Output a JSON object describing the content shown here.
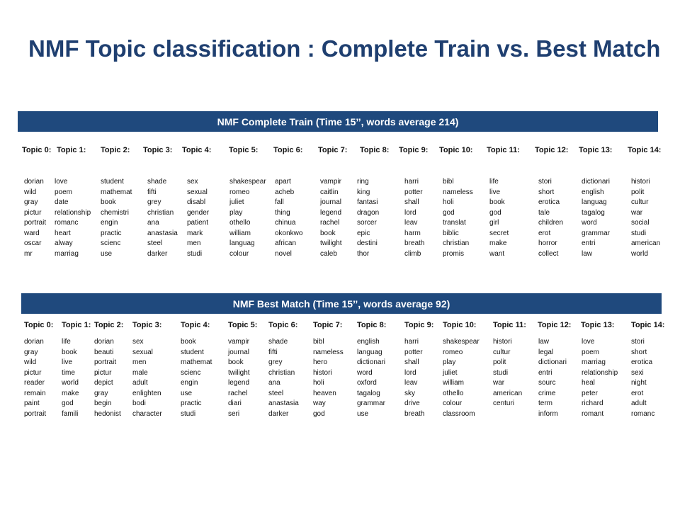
{
  "title": "NMF Topic classification : Complete Train vs. Best Match",
  "sections": [
    {
      "banner": "NMF Complete Train (Time 15’’, words average 214)",
      "topics": [
        {
          "label": "Topic 0:",
          "words": [
            "dorian",
            "wild",
            "gray",
            "pictur",
            "portrait",
            "ward",
            "oscar",
            "mr"
          ]
        },
        {
          "label": "Topic 1:",
          "words": [
            "love",
            "poem",
            "date",
            "relationship",
            "romanc",
            "heart",
            "alway",
            "marriag"
          ]
        },
        {
          "label": "Topic 2:",
          "words": [
            "student",
            "mathemat",
            "book",
            "chemistri",
            "engin",
            "practic",
            "scienc",
            "use"
          ]
        },
        {
          "label": "Topic 3:",
          "words": [
            "shade",
            "fifti",
            "grey",
            "christian",
            "ana",
            "anastasia",
            "steel",
            "darker"
          ]
        },
        {
          "label": "Topic 4:",
          "words": [
            "sex",
            "sexual",
            "disabl",
            "gender",
            "patient",
            "mark",
            "men",
            "studi"
          ]
        },
        {
          "label": "Topic 5:",
          "words": [
            "shakespear",
            "romeo",
            "juliet",
            "play",
            "othello",
            "william",
            "languag",
            "colour"
          ]
        },
        {
          "label": "Topic 6:",
          "words": [
            "apart",
            "acheb",
            "fall",
            "thing",
            "chinua",
            "okonkwo",
            "african",
            "novel"
          ]
        },
        {
          "label": "Topic 7:",
          "words": [
            "vampir",
            "caitlin",
            "journal",
            "legend",
            "rachel",
            "book",
            "twilight",
            "caleb"
          ]
        },
        {
          "label": "Topic 8:",
          "words": [
            "ring",
            "king",
            "fantasi",
            "dragon",
            "sorcer",
            "epic",
            "destini",
            "thor"
          ]
        },
        {
          "label": "Topic 9:",
          "words": [
            "harri",
            "potter",
            "shall",
            "lord",
            "leav",
            "harm",
            "breath",
            "climb"
          ]
        },
        {
          "label": "Topic 10:",
          "words": [
            "bibl",
            "nameless",
            "holi",
            "god",
            "translat",
            "biblic",
            "christian",
            "promis"
          ]
        },
        {
          "label": "Topic 11:",
          "words": [
            "life",
            "live",
            "book",
            "god",
            "girl",
            "secret",
            "make",
            "want"
          ]
        },
        {
          "label": "Topic 12:",
          "words": [
            "stori",
            "short",
            "erotica",
            "tale",
            "children",
            "erot",
            "horror",
            "collect"
          ]
        },
        {
          "label": "Topic 13:",
          "words": [
            "dictionari",
            "english",
            "languag",
            "tagalog",
            "word",
            "grammar",
            "entri",
            "law"
          ]
        },
        {
          "label": "Topic 14:",
          "words": [
            "histori",
            "polit",
            "cultur",
            "war",
            "social",
            "studi",
            "american",
            "world"
          ]
        }
      ]
    },
    {
      "banner": "NMF Best Match (Time 15’’, words average 92)",
      "topics": [
        {
          "label": "Topic 0:",
          "words": [
            "dorian",
            "gray",
            "wild",
            "pictur",
            "reader",
            "remain",
            "paint",
            "portrait"
          ]
        },
        {
          "label": "Topic 1:",
          "words": [
            "life",
            "book",
            "live",
            "time",
            "world",
            "make",
            "god",
            "famili"
          ]
        },
        {
          "label": "Topic 2:",
          "words": [
            "dorian",
            "beauti",
            "portrait",
            "pictur",
            "depict",
            "gray",
            "begin",
            "hedonist"
          ]
        },
        {
          "label": "Topic 3:",
          "words": [
            "sex",
            "sexual",
            "men",
            "male",
            "adult",
            "enlighten",
            "bodi",
            "character"
          ]
        },
        {
          "label": "Topic 4:",
          "words": [
            "book",
            "student",
            "mathemat",
            "scienc",
            "engin",
            "use",
            "practic",
            "studi"
          ]
        },
        {
          "label": "Topic 5:",
          "words": [
            "vampir",
            "journal",
            "book",
            "twilight",
            "legend",
            "rachel",
            "diari",
            "seri"
          ]
        },
        {
          "label": "Topic 6:",
          "words": [
            "shade",
            "fifti",
            "grey",
            "christian",
            "ana",
            "steel",
            "anastasia",
            "darker"
          ]
        },
        {
          "label": "Topic 7:",
          "words": [
            "bibl",
            "nameless",
            "hero",
            "histori",
            "holi",
            "heaven",
            "way",
            "god"
          ]
        },
        {
          "label": "Topic 8:",
          "words": [
            "english",
            "languag",
            "dictionari",
            "word",
            "oxford",
            "tagalog",
            "grammar",
            "use"
          ]
        },
        {
          "label": "Topic 9:",
          "words": [
            "harri",
            "potter",
            "shall",
            "lord",
            "leav",
            "sky",
            "drive",
            "breath"
          ]
        },
        {
          "label": "Topic 10:",
          "words": [
            "shakespear",
            "romeo",
            "play",
            "juliet",
            "william",
            "othello",
            "colour",
            "classroom"
          ]
        },
        {
          "label": "Topic 11:",
          "words": [
            "histori",
            "cultur",
            "polit",
            "studi",
            "war",
            "american",
            "centuri"
          ]
        },
        {
          "label": "Topic 12:",
          "words": [
            "law",
            "legal",
            "dictionari",
            "entri",
            "sourc",
            "crime",
            "term",
            "inform"
          ]
        },
        {
          "label": "Topic 13:",
          "words": [
            "love",
            "poem",
            "marriag",
            "relationship",
            "heal",
            "peter",
            "richard",
            "romant"
          ]
        },
        {
          "label": "Topic 14:",
          "words": [
            "stori",
            "short",
            "erotica",
            "sexi",
            "night",
            "erot",
            "adult",
            "romanc"
          ]
        }
      ]
    }
  ],
  "colors": {
    "title": "#1f3f70",
    "banner_bg": "#1f497d",
    "banner_text": "#ffffff"
  }
}
